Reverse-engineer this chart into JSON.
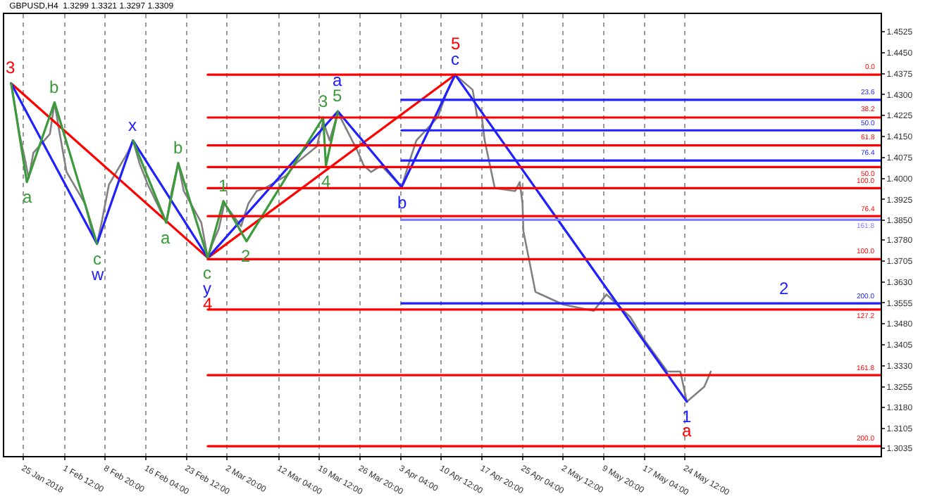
{
  "chart_data": {
    "type": "line",
    "title": "GBPUSD,H4  1.3299 1.3321 1.3297 1.3309",
    "xlim": [
      "2018-01-21T14:00",
      "2018-06-28T20:00"
    ],
    "ylim": [
      1.3007,
      1.4588
    ],
    "xticks": [
      {
        "value": "2018-01-25T00:00",
        "label": "25 Jan 2018"
      },
      {
        "value": "2018-02-01T12:00",
        "label": "1 Feb 12:00"
      },
      {
        "value": "2018-02-08T20:00",
        "label": "8 Feb 20:00"
      },
      {
        "value": "2018-02-16T04:00",
        "label": "16 Feb 04:00"
      },
      {
        "value": "2018-02-23T12:00",
        "label": "23 Feb 12:00"
      },
      {
        "value": "2018-03-02T20:00",
        "label": "2 Mar 20:00"
      },
      {
        "value": "2018-03-12T04:00",
        "label": "12 Mar 04:00"
      },
      {
        "value": "2018-03-19T12:00",
        "label": "19 Mar 12:00"
      },
      {
        "value": "2018-03-26T20:00",
        "label": "26 Mar 20:00"
      },
      {
        "value": "2018-04-03T04:00",
        "label": "3 Apr 04:00"
      },
      {
        "value": "2018-04-10T12:00",
        "label": "10 Apr 12:00"
      },
      {
        "value": "2018-04-17T20:00",
        "label": "17 Apr 20:00"
      },
      {
        "value": "2018-04-25T04:00",
        "label": "25 Apr 04:00"
      },
      {
        "value": "2018-05-02T12:00",
        "label": "2 May 12:00"
      },
      {
        "value": "2018-05-09T20:00",
        "label": "9 May 20:00"
      },
      {
        "value": "2018-05-17T04:00",
        "label": "17 May 04:00"
      },
      {
        "value": "2018-05-24T12:00",
        "label": "24 May 12:00"
      }
    ],
    "yticks": [
      1.4525,
      {
        "value": 1.445,
        "label": "1.4450"
      },
      1.4375,
      {
        "value": 1.43,
        "label": "1.4300"
      },
      1.4225,
      {
        "value": 1.415,
        "label": "1.4150"
      },
      1.4075,
      {
        "value": 1.4,
        "label": "1.4000"
      },
      1.3925,
      {
        "value": 1.385,
        "label": "1.3850"
      },
      {
        "value": 1.378,
        "label": "1.3780"
      },
      1.3705,
      {
        "value": 1.363,
        "label": "1.3630"
      },
      1.3555,
      {
        "value": 1.348,
        "label": "1.3480"
      },
      1.3405,
      {
        "value": 1.333,
        "label": "1.3330"
      },
      1.3255,
      {
        "value": 1.318,
        "label": "1.3180"
      },
      1.3105,
      1.3035
    ],
    "grid": "x",
    "marker": "none",
    "line_style": "solid",
    "series": [
      {
        "color": "#808080",
        "x": [
          "2018-01-22T20:00",
          "2018-01-23T12:00",
          "2018-01-24T08:00",
          "2018-01-25T08:00",
          "2018-01-26T00:00",
          "2018-01-26T20:00",
          "2018-01-29T20:00",
          "2018-01-30T16:00",
          "2018-01-31T12:00",
          "2018-02-01T20:00",
          "2018-02-05T04:00",
          "2018-02-06T08:00",
          "2018-02-07T08:00",
          "2018-02-08T04:00",
          "2018-02-09T12:00",
          "2018-02-12T20:00",
          "2018-02-13T20:00",
          "2018-02-15T00:00",
          "2018-02-16T12:00",
          "2018-02-19T20:00",
          "2018-02-20T20:00",
          "2018-02-22T00:00",
          "2018-02-23T00:00",
          "2018-02-26T04:00",
          "2018-02-27T08:00",
          "2018-02-28T04:00",
          "2018-03-01T08:00",
          "2018-03-02T08:00",
          "2018-03-05T08:00",
          "2018-03-06T16:00",
          "2018-03-08T04:00",
          "2018-03-09T16:00",
          "2018-03-13T12:00",
          "2018-03-15T08:00",
          "2018-03-19T00:00",
          "2018-03-20T04:00",
          "2018-03-21T08:00",
          "2018-03-22T20:00",
          "2018-03-26T08:00",
          "2018-03-27T12:00",
          "2018-03-28T20:00",
          "2018-03-30T16:00",
          "2018-04-03T08:00",
          "2018-04-04T16:00",
          "2018-04-06T00:00",
          "2018-04-09T20:00",
          "2018-04-11T12:00",
          "2018-04-13T00:00",
          "2018-04-16T04:00",
          "2018-04-17T00:00",
          "2018-04-17T20:00",
          "2018-04-18T08:00",
          "2018-04-20T04:00",
          "2018-04-23T20:00",
          "2018-04-24T16:00",
          "2018-04-25T04:00",
          "2018-04-25T08:00",
          "2018-04-27T12:00",
          "2018-05-02T12:00",
          "2018-05-08T00:00",
          "2018-05-10T08:00",
          "2018-05-14T16:00",
          "2018-05-17T00:00",
          "2018-05-21T08:00",
          "2018-05-23T16:00",
          "2018-05-24T20:00",
          "2018-05-28T00:00",
          "2018-05-29T04:00"
        ],
        "values": [
          1.434,
          1.4263,
          1.4159,
          1.4068,
          1.4001,
          1.4091,
          1.4159,
          1.4272,
          1.4172,
          1.4023,
          1.391,
          1.382,
          1.3766,
          1.3842,
          1.3978,
          1.4091,
          1.4136,
          1.4055,
          1.3978,
          1.3842,
          1.3955,
          1.4055,
          1.3955,
          1.3842,
          1.3716,
          1.3766,
          1.382,
          1.391,
          1.3829,
          1.391,
          1.3955,
          1.3965,
          1.401,
          1.4055,
          1.4114,
          1.4204,
          1.4136,
          1.4236,
          1.41,
          1.4046,
          1.4023,
          1.4046,
          1.3969,
          1.4055,
          1.4136,
          1.4218,
          1.4308,
          1.4371,
          1.4317,
          1.4218,
          1.4218,
          1.4136,
          1.3965,
          1.3955,
          1.3987,
          1.391,
          1.3811,
          1.3594,
          1.3549,
          1.3526,
          1.3585,
          1.3503,
          1.3427,
          1.3309,
          1.3309,
          1.3201,
          1.3255,
          1.3309
        ]
      },
      {
        "color": "#ff0000",
        "x": [
          "2018-01-22T20:00",
          "2018-02-27T08:00",
          "2018-04-13T00:00"
        ],
        "values": [
          1.434,
          1.3716,
          1.4371
        ]
      },
      {
        "color": "#2020ff",
        "x": [
          "2018-01-22T20:00",
          "2018-02-07T08:00",
          "2018-02-13T20:00",
          "2018-02-27T08:00",
          "2018-03-22T20:00",
          "2018-04-03T08:00",
          "2018-04-13T00:00",
          "2018-05-24T20:00"
        ],
        "values": [
          1.434,
          1.3766,
          1.4136,
          1.3716,
          1.424,
          1.3969,
          1.4371,
          1.3201
        ]
      },
      {
        "color": "#3c9a3c",
        "x": [
          "2018-01-22T20:00",
          "2018-01-25T16:00",
          "2018-01-30T16:00",
          "2018-02-07T08:00"
        ],
        "values": [
          1.434,
          1.3987,
          1.4272,
          1.3766
        ]
      },
      {
        "color": "#3c9a3c",
        "x": [
          "2018-02-13T20:00",
          "2018-02-19T20:00",
          "2018-02-22T00:00",
          "2018-02-27T08:00"
        ],
        "values": [
          1.4136,
          1.3842,
          1.4055,
          1.3716
        ]
      },
      {
        "color": "#3c9a3c",
        "x": [
          "2018-02-27T08:00",
          "2018-03-02T04:00",
          "2018-03-06T08:00",
          "2018-03-20T04:00",
          "2018-03-20T16:00",
          "2018-03-22T20:00"
        ],
        "values": [
          1.3716,
          1.3919,
          1.3775,
          1.4218,
          1.4046,
          1.424
        ]
      },
      {
        "color": "#ff0000",
        "x": [
          "2018-02-27T08:00",
          "2018-06-28T20:00"
        ],
        "values": [
          1.4371,
          1.4371
        ]
      },
      {
        "color": "#ff0000",
        "x": [
          "2018-02-27T08:00",
          "2018-06-28T20:00"
        ],
        "values": [
          1.4218,
          1.4218
        ]
      },
      {
        "color": "#ff0000",
        "x": [
          "2018-02-27T08:00",
          "2018-06-28T20:00"
        ],
        "values": [
          1.4118,
          1.4118
        ]
      },
      {
        "color": "#ff0000",
        "x": [
          "2018-02-27T08:00",
          "2018-06-28T20:00"
        ],
        "values": [
          1.4041,
          1.4041
        ]
      },
      {
        "color": "#ff0000",
        "x": [
          "2018-02-27T08:00",
          "2018-06-28T20:00"
        ],
        "values": [
          1.3965,
          1.3965
        ]
      },
      {
        "color": "#ff0000",
        "x": [
          "2018-02-27T08:00",
          "2018-06-28T20:00"
        ],
        "values": [
          1.3865,
          1.3865
        ]
      },
      {
        "color": "#ff0000",
        "x": [
          "2018-02-27T08:00",
          "2018-06-28T20:00"
        ],
        "values": [
          1.3711,
          1.3711
        ]
      },
      {
        "color": "#ff0000",
        "x": [
          "2018-02-27T08:00",
          "2018-06-28T20:00"
        ],
        "values": [
          1.3531,
          1.3531
        ]
      },
      {
        "color": "#ff0000",
        "x": [
          "2018-02-27T08:00",
          "2018-06-28T20:00"
        ],
        "values": [
          1.3296,
          1.3296
        ]
      },
      {
        "color": "#ff0000",
        "x": [
          "2018-02-27T08:00",
          "2018-05-24T20:00",
          "2018-06-28T20:00"
        ],
        "values": [
          1.3042,
          1.3042,
          1.3042
        ]
      },
      {
        "color": "#2020ff",
        "x": [
          "2018-04-03T08:00",
          "2018-06-28T20:00"
        ],
        "values": [
          1.4281,
          1.4281
        ]
      },
      {
        "color": "#2020ff",
        "x": [
          "2018-04-03T08:00",
          "2018-06-28T20:00"
        ],
        "values": [
          1.4172,
          1.4172
        ]
      },
      {
        "color": "#2020ff",
        "x": [
          "2018-04-03T08:00",
          "2018-06-28T20:00"
        ],
        "values": [
          1.4064,
          1.4064
        ]
      },
      {
        "color": "#8080ff",
        "x": [
          "2018-04-03T08:00",
          "2018-06-28T20:00"
        ],
        "values": [
          1.3852,
          1.3852
        ]
      },
      {
        "color": "#2020ff",
        "x": [
          "2018-04-03T08:00",
          "2018-06-11T08:00",
          "2018-06-28T20:00"
        ],
        "values": [
          1.3553,
          1.3553,
          1.3553
        ]
      }
    ],
    "annotations": [
      {
        "text": "3",
        "x": "2018-01-22T20:00",
        "y": 1.434
      },
      {
        "text": "a",
        "x": "2018-01-25T16:00",
        "y": 1.3987
      },
      {
        "text": "b",
        "x": "2018-01-30T16:00",
        "y": 1.4272
      },
      {
        "text": "w",
        "x": "2018-02-07T08:00",
        "y": 1.3766
      },
      {
        "text": "c",
        "x": "2018-02-07T08:00",
        "y": 1.3766
      },
      {
        "text": "x",
        "x": "2018-02-13T20:00",
        "y": 1.4136
      },
      {
        "text": "a",
        "x": "2018-02-19T20:00",
        "y": 1.3842
      },
      {
        "text": "b",
        "x": "2018-02-22T00:00",
        "y": 1.4055
      },
      {
        "text": "4",
        "x": "2018-02-27T08:00",
        "y": 1.3716
      },
      {
        "text": "y",
        "x": "2018-02-27T08:00",
        "y": 1.3716
      },
      {
        "text": "c",
        "x": "2018-02-27T08:00",
        "y": 1.3716
      },
      {
        "text": "1",
        "x": "2018-03-02T04:00",
        "y": 1.3919
      },
      {
        "text": "2",
        "x": "2018-03-06T08:00",
        "y": 1.3775
      },
      {
        "text": "3",
        "x": "2018-03-20T04:00",
        "y": 1.4218
      },
      {
        "text": "4",
        "x": "2018-03-20T16:00",
        "y": 1.4046
      },
      {
        "text": "a",
        "x": "2018-03-22T20:00",
        "y": 1.424
      },
      {
        "text": "5",
        "x": "2018-03-22T20:00",
        "y": 1.424
      },
      {
        "text": "b",
        "x": "2018-04-03T08:00",
        "y": 1.3969
      },
      {
        "text": "5",
        "x": "2018-04-13T00:00",
        "y": 1.4371
      },
      {
        "text": "c",
        "x": "2018-04-13T00:00",
        "y": 1.4371
      },
      {
        "text": "1",
        "x": "2018-05-24T20:00",
        "y": 1.3201
      },
      {
        "text": "a",
        "x": "2018-05-24T20:00",
        "y": 1.3042
      },
      {
        "text": "2",
        "x": "2018-06-11T08:00",
        "y": 1.3553
      },
      {
        "text": "0.0",
        "x": "2018-06-28T20:00",
        "y": 1.4371
      },
      {
        "text": "23.6",
        "x": "2018-06-28T20:00",
        "y": 1.4281
      },
      {
        "text": "38.2",
        "x": "2018-06-28T20:00",
        "y": 1.4218
      },
      {
        "text": "50.0",
        "x": "2018-06-28T20:00",
        "y": 1.4172
      },
      {
        "text": "61.8",
        "x": "2018-06-28T20:00",
        "y": 1.4118
      },
      {
        "text": "76.4",
        "x": "2018-06-28T20:00",
        "y": 1.4064
      },
      {
        "text": "50.0",
        "x": "2018-06-28T20:00",
        "y": 1.4041
      },
      {
        "text": "100.0",
        "x": "2018-06-28T20:00",
        "y": 1.3965
      },
      {
        "text": "76.4",
        "x": "2018-06-28T20:00",
        "y": 1.3865
      },
      {
        "text": "161.8",
        "x": "2018-06-28T20:00",
        "y": 1.3852
      },
      {
        "text": "100.0",
        "x": "2018-06-28T20:00",
        "y": 1.3711
      },
      {
        "text": "200.0",
        "x": "2018-06-28T20:00",
        "y": 1.3553
      },
      {
        "text": "127.2",
        "x": "2018-06-28T20:00",
        "y": 1.3531
      },
      {
        "text": "161.8",
        "x": "2018-06-28T20:00",
        "y": 1.3296
      },
      {
        "text": "200.0",
        "x": "2018-06-28T20:00",
        "y": 1.3042
      }
    ]
  }
}
